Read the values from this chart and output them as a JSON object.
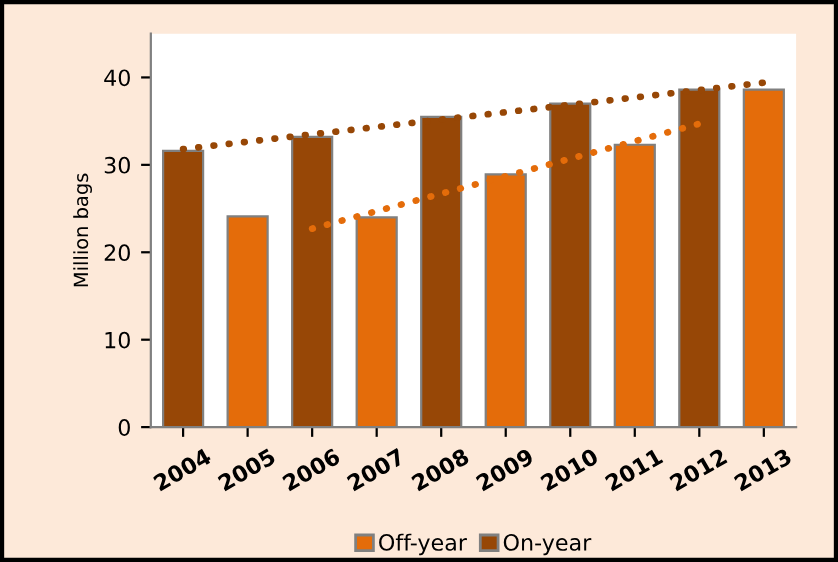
{
  "chart_data": {
    "type": "bar",
    "ylabel": "Million bags",
    "categories": [
      "2004",
      "2005",
      "2006",
      "2007",
      "2008",
      "2009",
      "2010",
      "2011",
      "2012",
      "2013"
    ],
    "series": [
      {
        "name": "Off-year",
        "color": "#e46c0a",
        "values": [
          null,
          24.1,
          null,
          24,
          null,
          28.9,
          null,
          32.3,
          null,
          38.6
        ]
      },
      {
        "name": "On-year",
        "color": "#974706",
        "values": [
          31.6,
          null,
          33.2,
          null,
          35.5,
          null,
          37.0,
          null,
          38.6,
          null
        ]
      },
      {
        "type": "line",
        "color": "#974706",
        "line_style": "dotted",
        "values": [
          31.8,
          null,
          null,
          null,
          null,
          null,
          null,
          null,
          null,
          39.4
        ]
      },
      {
        "type": "line",
        "color": "#e46c0a",
        "line_style": "dotted",
        "values": [
          null,
          null,
          22.7,
          null,
          null,
          null,
          null,
          null,
          34.7,
          null
        ]
      }
    ],
    "ylim": [
      0,
      45
    ],
    "yticks": [
      0,
      10,
      20,
      30,
      40
    ],
    "grid": false,
    "legend": "bottom"
  }
}
